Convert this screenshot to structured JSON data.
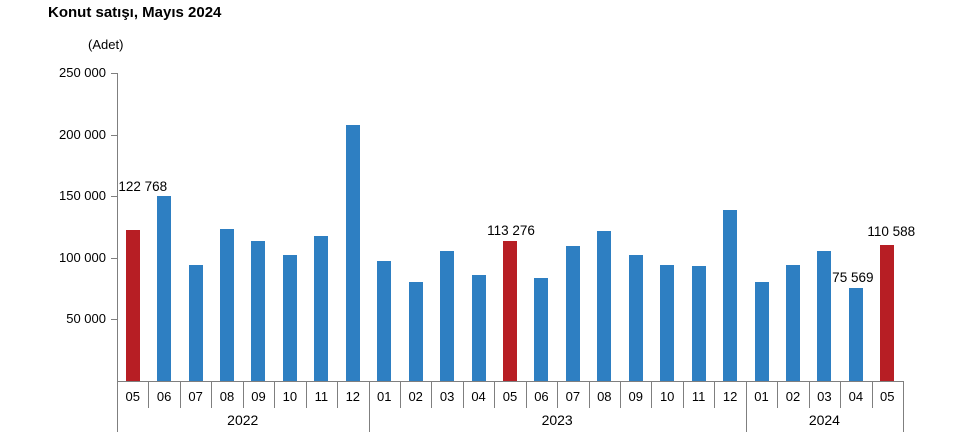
{
  "header": {
    "title": "Konut satışı, Mayıs 2024"
  },
  "chart_data": {
    "type": "bar",
    "title": "Konut satışı, Mayıs 2024",
    "unit_label": "(Adet)",
    "grid": false,
    "legend": false,
    "ylim": [
      0,
      250000
    ],
    "ytick_values": [
      50000,
      100000,
      150000,
      200000,
      250000
    ],
    "ytick_labels": [
      "50 000",
      "100 000",
      "150 000",
      "200 000",
      "250 000"
    ],
    "colors": {
      "bar_default": "#2e7fc2",
      "bar_highlight": "#b71e24",
      "axis": "#7f7f7f",
      "text": "#000000"
    },
    "groups": [
      {
        "year": "2022",
        "months": [
          "05",
          "06",
          "07",
          "08",
          "09",
          "10",
          "11",
          "12"
        ]
      },
      {
        "year": "2023",
        "months": [
          "01",
          "02",
          "03",
          "04",
          "05",
          "06",
          "07",
          "08",
          "09",
          "10",
          "11",
          "12"
        ]
      },
      {
        "year": "2024",
        "months": [
          "01",
          "02",
          "03",
          "04",
          "05"
        ]
      }
    ],
    "categories": [
      "05",
      "06",
      "07",
      "08",
      "09",
      "10",
      "11",
      "12",
      "01",
      "02",
      "03",
      "04",
      "05",
      "06",
      "07",
      "08",
      "09",
      "10",
      "11",
      "12",
      "01",
      "02",
      "03",
      "04",
      "05"
    ],
    "series": [
      {
        "name": "Konut satışı",
        "values": [
          122768,
          150509,
          93902,
          123491,
          113402,
          102660,
          117806,
          207963,
          97708,
          80031,
          105476,
          85652,
          113276,
          83636,
          109548,
          122091,
          102656,
          93761,
          93514,
          138577,
          80308,
          93902,
          105394,
          75569,
          110588
        ]
      }
    ],
    "highlight_indices": [
      0,
      12,
      24
    ],
    "data_labels": [
      {
        "index": 0,
        "text": "122 768"
      },
      {
        "index": 12,
        "text": "113 276"
      },
      {
        "index": 23,
        "text": "75 569"
      },
      {
        "index": 24,
        "text": "110 588"
      }
    ]
  }
}
